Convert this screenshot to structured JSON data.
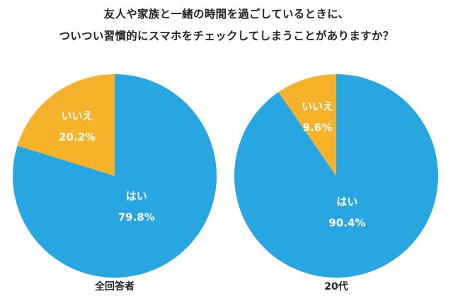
{
  "title_lines": [
    "友人や家族と一緒の時間を過ごしているときに、",
    "ついつい習慣的にスマホをチェックしてしまうことがありますか？"
  ],
  "colors": {
    "yes": "#27A6E1",
    "no": "#F6B22A",
    "label": "#ffffff"
  },
  "chart_data": [
    {
      "type": "pie",
      "title": "全回答者",
      "slices": [
        {
          "label": "はい",
          "value": 79.8,
          "value_label": "79.8%"
        },
        {
          "label": "いいえ",
          "value": 20.2,
          "value_label": "20.2%"
        }
      ]
    },
    {
      "type": "pie",
      "title": "20代",
      "slices": [
        {
          "label": "はい",
          "value": 90.4,
          "value_label": "90.4%"
        },
        {
          "label": "いいえ",
          "value": 9.6,
          "value_label": "9.6%"
        }
      ]
    }
  ]
}
